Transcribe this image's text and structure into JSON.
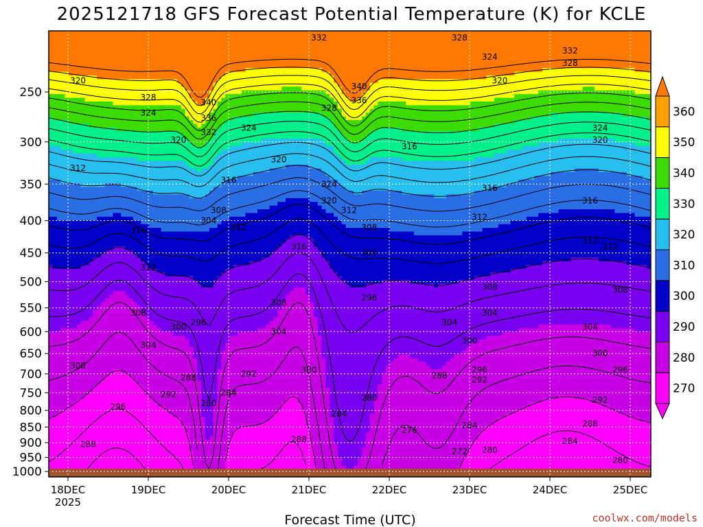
{
  "chart_data": {
    "type": "heatmap",
    "title": "2025121718 GFS Forecast Potential Temperature (K) for KCLE",
    "xlabel": "Forecast Time (UTC)",
    "ylabel": "",
    "x_ticks": [
      "18DEC",
      "19DEC",
      "20DEC",
      "21DEC",
      "22DEC",
      "23DEC",
      "24DEC",
      "25DEC"
    ],
    "x_year_label": "2025",
    "y_ticks": [
      250,
      300,
      350,
      400,
      450,
      500,
      550,
      600,
      650,
      700,
      750,
      800,
      850,
      900,
      950,
      1000
    ],
    "y_axis": "pressure (log scale), inverted",
    "grid": true,
    "colorbar": {
      "levels": [
        270,
        280,
        290,
        300,
        310,
        320,
        330,
        340,
        350,
        360
      ],
      "colors": [
        "#ff00ff",
        "#c800e6",
        "#7a00f0",
        "#0000c8",
        "#2a6ee6",
        "#28bef0",
        "#00f08c",
        "#3cdc00",
        "#ffff00",
        "#ffa000"
      ],
      "under_color": "#ff00ff",
      "over_color": "#ff7800",
      "extend": "both"
    },
    "contour_labels": [
      {
        "time": "18DEC 03Z",
        "p": 240,
        "v": "320"
      },
      {
        "time": "19DEC 00Z",
        "p": 255,
        "v": "328"
      },
      {
        "time": "19DEC 00Z",
        "p": 270,
        "v": "324"
      },
      {
        "time": "19DEC 18Z",
        "p": 260,
        "v": "340"
      },
      {
        "time": "19DEC 18Z",
        "p": 275,
        "v": "336"
      },
      {
        "time": "19DEC 18Z",
        "p": 290,
        "v": "332"
      },
      {
        "time": "19DEC 09Z",
        "p": 298,
        "v": "320"
      },
      {
        "time": "20DEC 06Z",
        "p": 285,
        "v": "324"
      },
      {
        "time": "20DEC 15Z",
        "p": 320,
        "v": "320"
      },
      {
        "time": "20DEC 00Z",
        "p": 345,
        "v": "316"
      },
      {
        "time": "21DEC 03Z",
        "p": 205,
        "v": "332"
      },
      {
        "time": "21DEC 06Z",
        "p": 265,
        "v": "328"
      },
      {
        "time": "21DEC 15Z",
        "p": 245,
        "v": "340"
      },
      {
        "time": "21DEC 15Z",
        "p": 258,
        "v": "336"
      },
      {
        "time": "21DEC 06Z",
        "p": 350,
        "v": "324"
      },
      {
        "time": "21DEC 06Z",
        "p": 372,
        "v": "320"
      },
      {
        "time": "21DEC 12Z",
        "p": 385,
        "v": "312"
      },
      {
        "time": "22DEC 06Z",
        "p": 305,
        "v": "316"
      },
      {
        "time": "22DEC 21Z",
        "p": 205,
        "v": "328"
      },
      {
        "time": "23DEC 06Z",
        "p": 220,
        "v": "324"
      },
      {
        "time": "23DEC 09Z",
        "p": 240,
        "v": "320"
      },
      {
        "time": "24DEC 06Z",
        "p": 215,
        "v": "332"
      },
      {
        "time": "24DEC 06Z",
        "p": 225,
        "v": "328"
      },
      {
        "time": "24DEC 15Z",
        "p": 298,
        "v": "320"
      },
      {
        "time": "24DEC 15Z",
        "p": 285,
        "v": "324"
      },
      {
        "time": "23DEC 06Z",
        "p": 355,
        "v": "316"
      },
      {
        "time": "24DEC 12Z",
        "p": 372,
        "v": "316"
      },
      {
        "time": "23DEC 03Z",
        "p": 395,
        "v": "312"
      },
      {
        "time": "24DEC 12Z",
        "p": 430,
        "v": "312"
      },
      {
        "time": "18DEC 03Z",
        "p": 330,
        "v": "312"
      },
      {
        "time": "18DEC 21Z",
        "p": 415,
        "v": "316"
      },
      {
        "time": "19DEC 00Z",
        "p": 475,
        "v": "312"
      },
      {
        "time": "20DEC 03Z",
        "p": 410,
        "v": "312"
      },
      {
        "time": "20DEC 21Z",
        "p": 440,
        "v": "316"
      },
      {
        "time": "19DEC 21Z",
        "p": 385,
        "v": "308"
      },
      {
        "time": "19DEC 18Z",
        "p": 400,
        "v": "304"
      },
      {
        "time": "21DEC 18Z",
        "p": 410,
        "v": "308"
      },
      {
        "time": "21DEC 18Z",
        "p": 450,
        "v": "304"
      },
      {
        "time": "21DEC 18Z",
        "p": 530,
        "v": "296"
      },
      {
        "time": "18DEC 21Z",
        "p": 560,
        "v": "308"
      },
      {
        "time": "19DEC 00Z",
        "p": 630,
        "v": "304"
      },
      {
        "time": "19DEC 09Z",
        "p": 590,
        "v": "300"
      },
      {
        "time": "19DEC 15Z",
        "p": 580,
        "v": "296"
      },
      {
        "time": "20DEC 15Z",
        "p": 540,
        "v": "308"
      },
      {
        "time": "20DEC 15Z",
        "p": 600,
        "v": "304"
      },
      {
        "time": "21DEC 00Z",
        "p": 690,
        "v": "300"
      },
      {
        "time": "20DEC 06Z",
        "p": 700,
        "v": "292"
      },
      {
        "time": "20DEC 00Z",
        "p": 750,
        "v": "284"
      },
      {
        "time": "19DEC 12Z",
        "p": 710,
        "v": "288"
      },
      {
        "time": "19DEC 06Z",
        "p": 755,
        "v": "292"
      },
      {
        "time": "19DEC 18Z",
        "p": 780,
        "v": "280"
      },
      {
        "time": "18DEC 03Z",
        "p": 680,
        "v": "300"
      },
      {
        "time": "18DEC 15Z",
        "p": 790,
        "v": "296"
      },
      {
        "time": "18DEC 06Z",
        "p": 905,
        "v": "288"
      },
      {
        "time": "21DEC 09Z",
        "p": 810,
        "v": "284"
      },
      {
        "time": "20DEC 21Z",
        "p": 890,
        "v": "288"
      },
      {
        "time": "22DEC 18Z",
        "p": 580,
        "v": "304"
      },
      {
        "time": "23DEC 00Z",
        "p": 620,
        "v": "300"
      },
      {
        "time": "22DEC 15Z",
        "p": 705,
        "v": "288"
      },
      {
        "time": "23DEC 03Z",
        "p": 690,
        "v": "296"
      },
      {
        "time": "23DEC 03Z",
        "p": 715,
        "v": "292"
      },
      {
        "time": "21DEC 18Z",
        "p": 765,
        "v": "280"
      },
      {
        "time": "22DEC 06Z",
        "p": 860,
        "v": "276"
      },
      {
        "time": "22DEC 21Z",
        "p": 930,
        "v": "272"
      },
      {
        "time": "23DEC 00Z",
        "p": 845,
        "v": "284"
      },
      {
        "time": "23DEC 06Z",
        "p": 925,
        "v": "280"
      },
      {
        "time": "23DEC 06Z",
        "p": 510,
        "v": "308"
      },
      {
        "time": "23DEC 06Z",
        "p": 560,
        "v": "304"
      },
      {
        "time": "24DEC 12Z",
        "p": 840,
        "v": "288"
      },
      {
        "time": "24DEC 06Z",
        "p": 895,
        "v": "284"
      },
      {
        "time": "24DEC 15Z",
        "p": 770,
        "v": "292"
      },
      {
        "time": "24DEC 12Z",
        "p": 590,
        "v": "304"
      },
      {
        "time": "24DEC 15Z",
        "p": 650,
        "v": "300"
      },
      {
        "time": "24DEC 21Z",
        "p": 690,
        "v": "296"
      },
      {
        "time": "24DEC 21Z",
        "p": 515,
        "v": "308"
      },
      {
        "time": "24DEC 18Z",
        "p": 440,
        "v": "312"
      },
      {
        "time": "24DEC 21Z",
        "p": 960,
        "v": "280"
      }
    ]
  },
  "credit": "coolwx.com/models",
  "colors": {
    "surface": "#a0522d",
    "grid": "#ffffff",
    "contour": "#000000"
  }
}
